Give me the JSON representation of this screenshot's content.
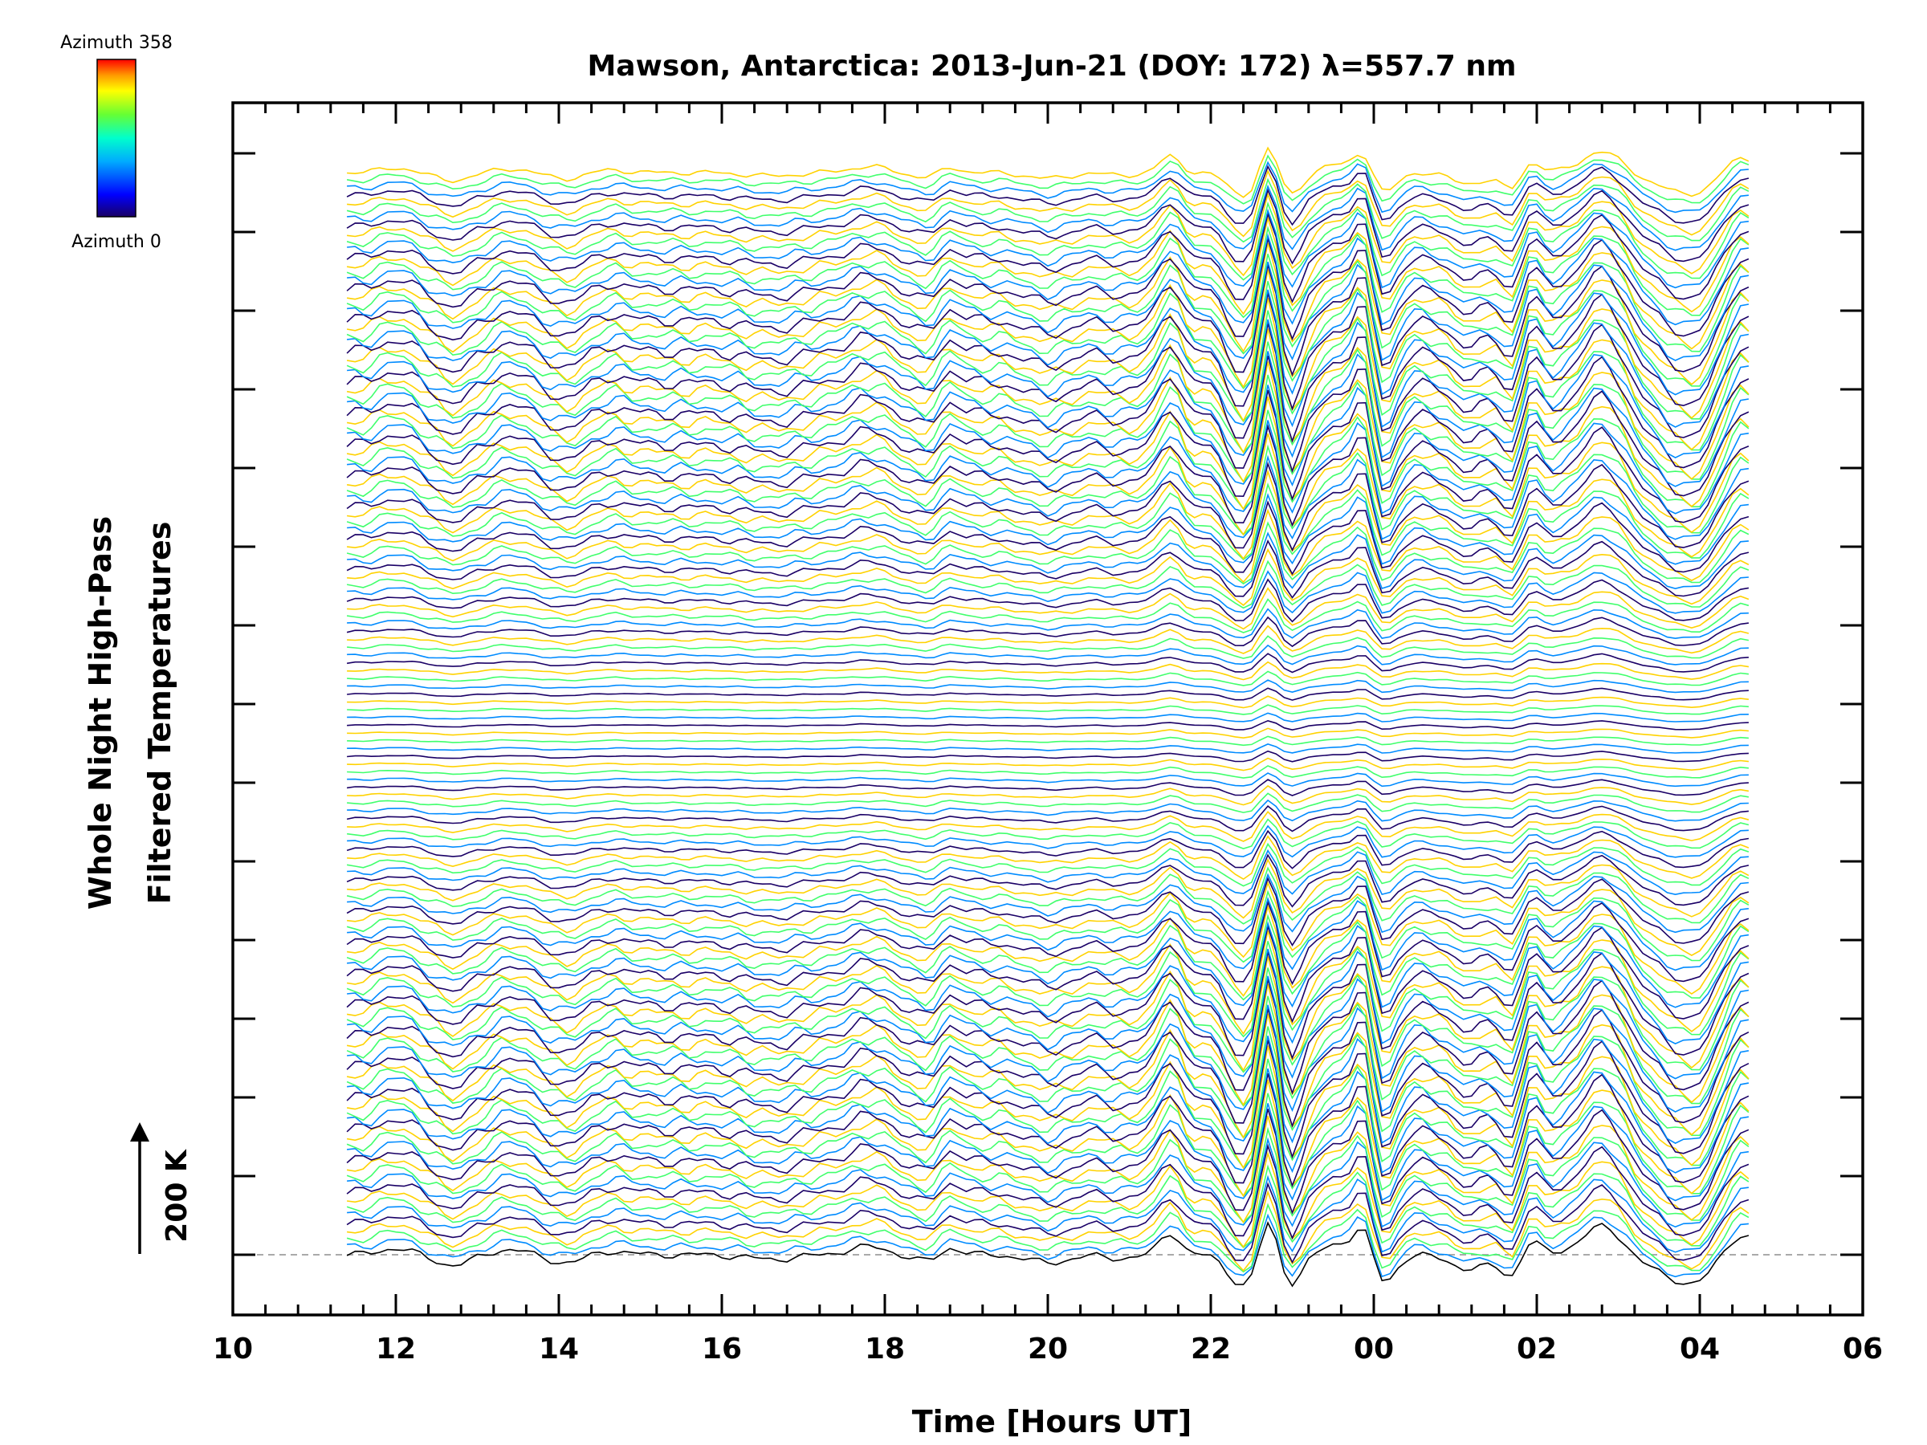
{
  "chart_data": {
    "type": "line",
    "title": "Mawson, Antarctica: 2013-Jun-21 (DOY: 172) λ=557.7 nm",
    "xlabel": "Time [Hours UT]",
    "ylabel_line1": "Whole Night High-Pass",
    "ylabel_line2": "Filtered Temperatures",
    "x_ticks": [
      "10",
      "12",
      "14",
      "16",
      "18",
      "20",
      "22",
      "00",
      "02",
      "04",
      "06"
    ],
    "x_range_hours_ut": [
      10,
      30
    ],
    "data_time_range_hours_ut": [
      11.4,
      28.6
    ],
    "series_count": 140,
    "scale_bar_label": "200 K",
    "colorbar": {
      "top_label": "Azimuth 358",
      "bottom_label": "Azimuth 0",
      "colors": [
        "#1a0066",
        "#0000ff",
        "#00aaff",
        "#00ffcc",
        "#66ff33",
        "#ffff00",
        "#ff9900",
        "#ff0000"
      ]
    },
    "grid": false,
    "legend": "none"
  }
}
